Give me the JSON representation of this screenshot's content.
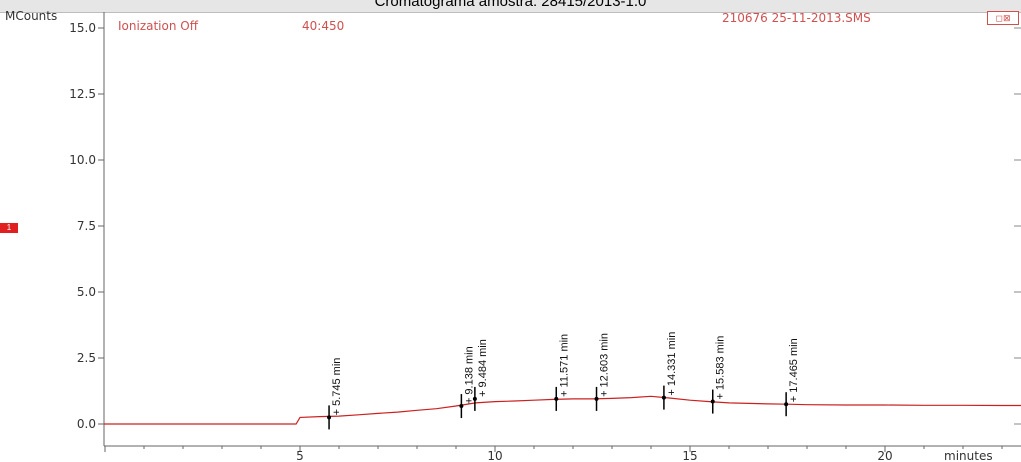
{
  "window": {
    "title": "Cromatograma amostra: 28415/2013-1.0",
    "file_label": "210676 25-11-2013.SMS",
    "button_label": "◻⊠"
  },
  "status": {
    "ionization": "Ionization Off",
    "mass_range": "40:450",
    "marker": "1"
  },
  "colors": {
    "trace": "#cc2020",
    "accent_text": "#d05050",
    "marker_box": "#e02020"
  },
  "chart_data": {
    "type": "line",
    "title": "Cromatograma amostra: 28415/2013-1.0",
    "ylabel": "MCounts",
    "xlabel": "minutes",
    "xlim": [
      0,
      25
    ],
    "ylim": [
      -0.6,
      15.6
    ],
    "yticks": [
      "0.0",
      "2.5",
      "5.0",
      "7.5",
      "10.0",
      "12.5",
      "15.0"
    ],
    "xticks": [
      "5",
      "10",
      "15",
      "20"
    ],
    "series": [
      {
        "x": [
          0,
          4.9,
          5.0,
          5.5,
          6.0,
          6.5,
          7.0,
          7.5,
          8.0,
          8.5,
          9.0,
          9.5,
          10.0,
          10.5,
          11.0,
          11.5,
          12.0,
          12.5,
          13.0,
          13.5,
          14.0,
          14.5,
          15.0,
          15.5,
          16.0,
          16.5,
          17.0,
          17.5,
          18.0,
          19.0,
          20.0,
          21.0,
          22.0,
          23.0,
          24.0,
          25.0
        ],
        "y": [
          0.0,
          0.0,
          0.25,
          0.28,
          0.3,
          0.35,
          0.4,
          0.45,
          0.52,
          0.58,
          0.68,
          0.8,
          0.85,
          0.87,
          0.9,
          0.93,
          0.95,
          0.95,
          0.97,
          1.0,
          1.05,
          0.98,
          0.9,
          0.85,
          0.8,
          0.78,
          0.76,
          0.75,
          0.73,
          0.72,
          0.72,
          0.71,
          0.71,
          0.7,
          0.7,
          0.7
        ]
      }
    ],
    "peaks": [
      {
        "time": 5.745,
        "label": "5.745 min",
        "y": 0.25
      },
      {
        "time": 9.138,
        "label": "9.138 min",
        "y": 0.68
      },
      {
        "time": 9.484,
        "label": "9.484 min",
        "y": 0.95
      },
      {
        "time": 11.571,
        "label": "11.571 min",
        "y": 0.95
      },
      {
        "time": 12.603,
        "label": "12.603 min",
        "y": 0.95
      },
      {
        "time": 14.331,
        "label": "14.331 min",
        "y": 1.0
      },
      {
        "time": 15.583,
        "label": "15.583 min",
        "y": 0.85
      },
      {
        "time": 17.465,
        "label": "17.465 min",
        "y": 0.75
      }
    ]
  }
}
